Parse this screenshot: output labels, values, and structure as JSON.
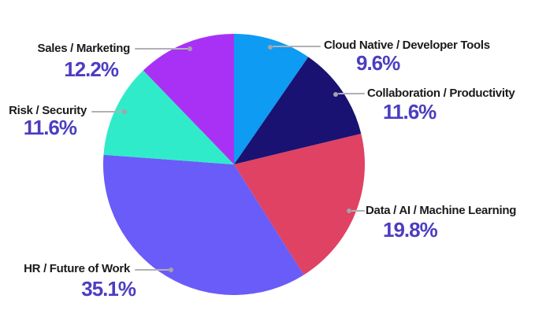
{
  "chart_data": {
    "type": "pie",
    "title": "",
    "legend_position": "callouts",
    "start_angle_deg": 0,
    "direction": "clockwise",
    "background_color": "#ffffff",
    "value_text_color": "#4c3dc1",
    "label_text_color": "#1b1b1d",
    "leader_line_color": "#b2b0b6",
    "slices": [
      {
        "label": "Cloud Native / Developer Tools",
        "value": 9.6,
        "pct_label": "9.6%",
        "color": "#0e9bf3"
      },
      {
        "label": "Collaboration / Productivity",
        "value": 11.6,
        "pct_label": "11.6%",
        "color": "#1a1272"
      },
      {
        "label": "Data / AI / Machine Learning",
        "value": 19.8,
        "pct_label": "19.8%",
        "color": "#df4263"
      },
      {
        "label": "HR / Future of Work",
        "value": 35.1,
        "pct_label": "35.1%",
        "color": "#6a5cf8"
      },
      {
        "label": "Risk / Security",
        "value": 11.6,
        "pct_label": "11.6%",
        "color": "#30ebc9"
      },
      {
        "label": "Sales / Marketing",
        "value": 12.2,
        "pct_label": "12.2%",
        "color": "#a931f6"
      }
    ]
  }
}
